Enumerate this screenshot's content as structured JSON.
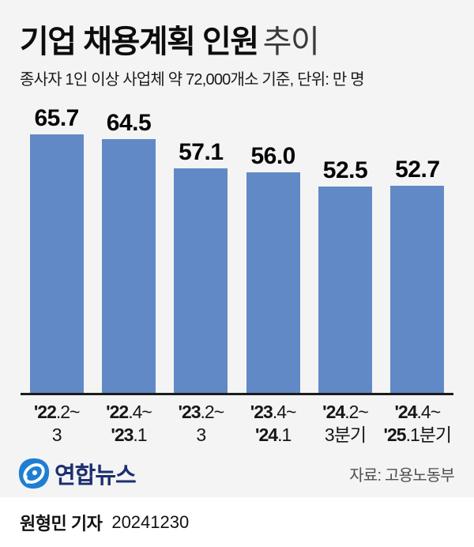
{
  "title": {
    "bold": "기업 채용계획 인원",
    "light": "추이"
  },
  "subtitle": "종사자 1인 이상 사업체 약 72,000개소 기준, 단위: 만 명",
  "chart_data": {
    "type": "bar",
    "title": "기업 채용계획 인원 추이",
    "categories": [
      "'22.2~3",
      "'22.4~'23.1",
      "'23.2~3",
      "'23.4~'24.1",
      "'24.2~3분기",
      "'24.4~'25.1분기"
    ],
    "values": [
      65.7,
      64.5,
      57.1,
      56.0,
      52.5,
      52.7
    ],
    "value_labels": [
      "65.7",
      "64.5",
      "57.1",
      "56.0",
      "52.5",
      "52.7"
    ],
    "category_lines": [
      {
        "l1b": "'22",
        "l1r": ".2~",
        "l2b": "",
        "l2r": "3"
      },
      {
        "l1b": "'22",
        "l1r": ".4~",
        "l2b": "'23",
        "l2r": ".1"
      },
      {
        "l1b": "'23",
        "l1r": ".2~",
        "l2b": "",
        "l2r": "3"
      },
      {
        "l1b": "'23",
        "l1r": ".4~",
        "l2b": "'24",
        "l2r": ".1"
      },
      {
        "l1b": "'24",
        "l1r": ".2~",
        "l2b": "",
        "l2r": "3분기"
      },
      {
        "l1b": "'24",
        "l1r": ".4~",
        "l2b": "'25",
        "l2r": ".1분기"
      }
    ],
    "xlabel": "",
    "ylabel": "만 명",
    "ylim": [
      0,
      70
    ],
    "grid": false,
    "legend": false,
    "bar_color": "#6189c5"
  },
  "footer": {
    "logo_text": "연합뉴스",
    "source": "자료: 고용노동부"
  },
  "byline": {
    "reporter": "원형민 기자",
    "date": "20241230"
  },
  "colors": {
    "bar": "#6189c5",
    "card_bg": "#f4f4f4",
    "axis": "#1c1c1c",
    "logo_blue": "#1e7fd2",
    "logo_navy": "#1c2f6e"
  }
}
